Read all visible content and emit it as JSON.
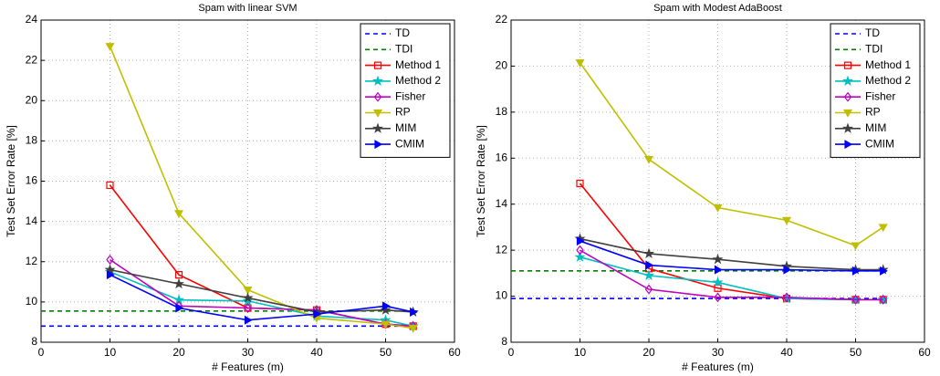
{
  "chart_data": [
    {
      "type": "line",
      "title": "Spam with linear SVM",
      "x_label": "# Features (m)",
      "y_label": "Test Set Error Rate [%]",
      "xlim": [
        0,
        60
      ],
      "xticks": [
        0,
        10,
        20,
        30,
        40,
        50,
        60
      ],
      "ylim": [
        8,
        24
      ],
      "yticks": [
        8,
        10,
        12,
        14,
        16,
        18,
        20,
        22,
        24
      ],
      "grid": true,
      "legend": "upper-right",
      "series": [
        {
          "name": "TD",
          "color": "#0000ff",
          "dash": true,
          "marker": "none",
          "x": [
            0,
            54
          ],
          "values": [
            8.8,
            8.8
          ]
        },
        {
          "name": "TDI",
          "color": "#008000",
          "dash": true,
          "marker": "none",
          "x": [
            0,
            54
          ],
          "values": [
            9.55,
            9.55
          ]
        },
        {
          "name": "Method 1",
          "color": "#ff0000",
          "dash": false,
          "marker": "square",
          "x": [
            10,
            20,
            30,
            40,
            50,
            54
          ],
          "values": [
            15.8,
            11.35,
            9.7,
            9.6,
            8.9,
            8.8
          ]
        },
        {
          "name": "Method 2",
          "color": "#00bfbf",
          "dash": false,
          "marker": "star",
          "x": [
            10,
            20,
            30,
            40,
            50,
            54
          ],
          "values": [
            11.5,
            10.1,
            10.05,
            9.3,
            9.1,
            8.8
          ]
        },
        {
          "name": "Fisher",
          "color": "#bf00bf",
          "dash": false,
          "marker": "diamond",
          "x": [
            10,
            20,
            30,
            40,
            50,
            54
          ],
          "values": [
            12.1,
            9.8,
            9.7,
            9.6,
            8.9,
            8.8
          ]
        },
        {
          "name": "RP",
          "color": "#bfbf00",
          "dash": false,
          "marker": "triangle-down",
          "x": [
            10,
            20,
            30,
            40,
            50,
            54
          ],
          "values": [
            22.7,
            14.4,
            10.6,
            9.2,
            8.9,
            8.7
          ]
        },
        {
          "name": "MIM",
          "color": "#404040",
          "dash": false,
          "marker": "star",
          "x": [
            10,
            20,
            30,
            40,
            50,
            54
          ],
          "values": [
            11.6,
            10.9,
            10.2,
            9.5,
            9.6,
            9.5
          ]
        },
        {
          "name": "CMIM",
          "color": "#0000ff",
          "dash": false,
          "marker": "triangle-right",
          "x": [
            10,
            20,
            30,
            40,
            50,
            54
          ],
          "values": [
            11.35,
            9.7,
            9.1,
            9.4,
            9.8,
            9.5
          ]
        }
      ]
    },
    {
      "type": "line",
      "title": "Spam with Modest AdaBoost",
      "x_label": "# Features (m)",
      "y_label": "Test Set Error Rate [%]",
      "xlim": [
        0,
        60
      ],
      "xticks": [
        0,
        10,
        20,
        30,
        40,
        50,
        60
      ],
      "ylim": [
        8,
        22
      ],
      "yticks": [
        8,
        10,
        12,
        14,
        16,
        18,
        20,
        22
      ],
      "grid": true,
      "legend": "upper-right",
      "series": [
        {
          "name": "TD",
          "color": "#0000ff",
          "dash": true,
          "marker": "none",
          "x": [
            0,
            54
          ],
          "values": [
            9.9,
            9.9
          ]
        },
        {
          "name": "TDI",
          "color": "#008000",
          "dash": true,
          "marker": "none",
          "x": [
            0,
            54
          ],
          "values": [
            11.1,
            11.1
          ]
        },
        {
          "name": "Method 1",
          "color": "#ff0000",
          "dash": false,
          "marker": "square",
          "x": [
            10,
            20,
            30,
            40,
            50,
            54
          ],
          "values": [
            14.9,
            11.2,
            10.35,
            9.9,
            9.85,
            9.85
          ]
        },
        {
          "name": "Method 2",
          "color": "#00bfbf",
          "dash": false,
          "marker": "star",
          "x": [
            10,
            20,
            30,
            40,
            50,
            54
          ],
          "values": [
            11.7,
            10.9,
            10.6,
            9.9,
            9.85,
            9.85
          ]
        },
        {
          "name": "Fisher",
          "color": "#bf00bf",
          "dash": false,
          "marker": "diamond",
          "x": [
            10,
            20,
            30,
            40,
            50,
            54
          ],
          "values": [
            12.0,
            10.3,
            9.95,
            9.95,
            9.85,
            9.85
          ]
        },
        {
          "name": "RP",
          "color": "#bfbf00",
          "dash": false,
          "marker": "triangle-down",
          "x": [
            10,
            20,
            30,
            40,
            50,
            54
          ],
          "values": [
            20.15,
            15.95,
            13.85,
            13.3,
            12.2,
            13.0
          ]
        },
        {
          "name": "MIM",
          "color": "#404040",
          "dash": false,
          "marker": "star",
          "x": [
            10,
            20,
            30,
            40,
            50,
            54
          ],
          "values": [
            12.5,
            11.85,
            11.6,
            11.3,
            11.15,
            11.15
          ]
        },
        {
          "name": "CMIM",
          "color": "#0000ff",
          "dash": false,
          "marker": "triangle-right",
          "x": [
            10,
            20,
            30,
            40,
            50,
            54
          ],
          "values": [
            12.4,
            11.35,
            11.15,
            11.15,
            11.1,
            11.1
          ]
        }
      ]
    }
  ]
}
